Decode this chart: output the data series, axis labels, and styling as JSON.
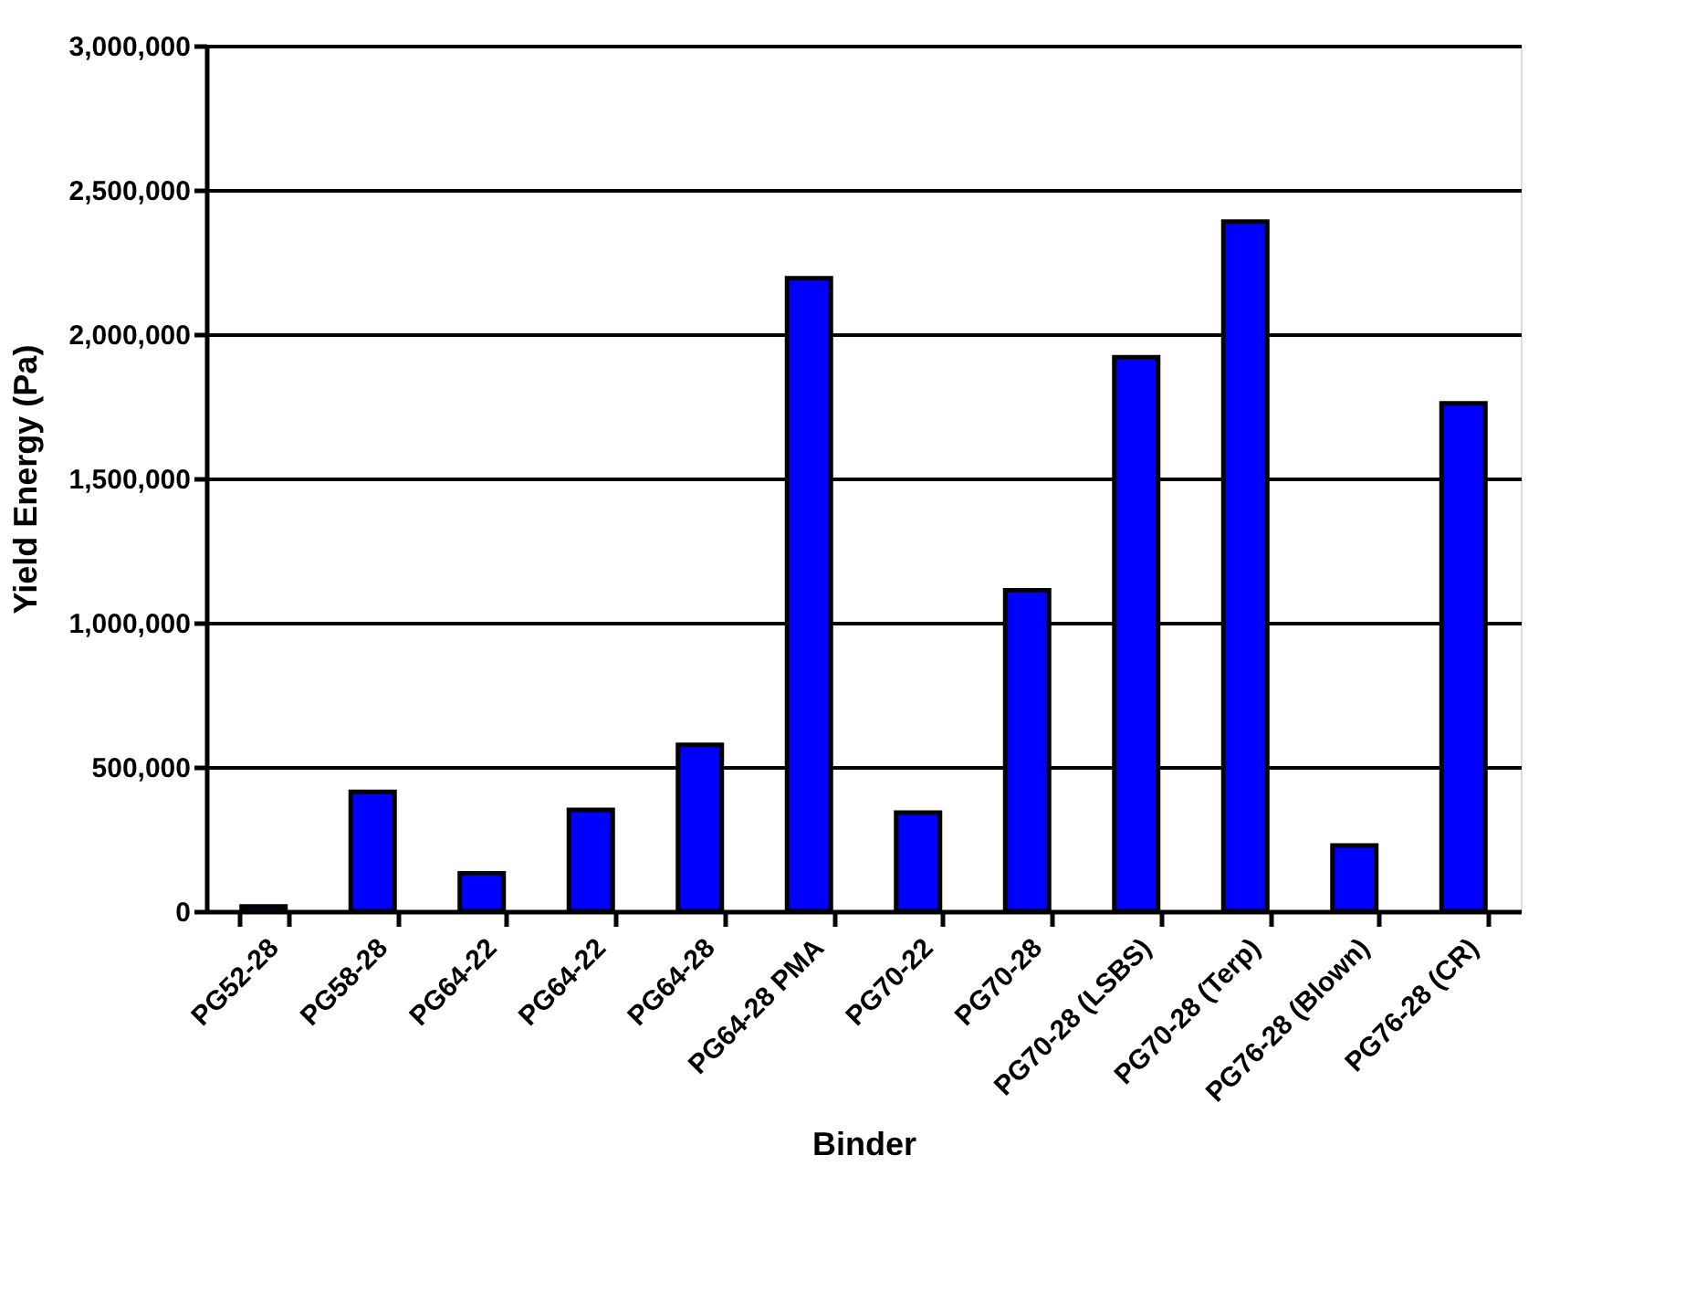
{
  "chart_data": {
    "type": "bar",
    "xlabel": "Binder",
    "ylabel": "Yield Energy (Pa)",
    "categories": [
      "PG52-28",
      "PG58-28",
      "PG64-22",
      "PG64-22",
      "PG64-28",
      "PG64-28 PMA",
      "PG70-22",
      "PG70-28",
      "PG70-28 (LSBS)",
      "PG70-28 (Terp)",
      "PG76-28 (Blown)",
      "PG76-28 (CR)"
    ],
    "values": [
      17000,
      414000,
      131000,
      351000,
      577000,
      2194000,
      342000,
      1112000,
      1920000,
      2390000,
      228000,
      1760000
    ],
    "color": "#0000ff",
    "ylim": [
      0,
      3000000
    ],
    "yticks": [
      {
        "value": 0,
        "label": "0"
      },
      {
        "value": 500000,
        "label": "500,000"
      },
      {
        "value": 1000000,
        "label": "1,000,000"
      },
      {
        "value": 1500000,
        "label": "1,500,000"
      },
      {
        "value": 2000000,
        "label": "2,000,000"
      },
      {
        "value": 2500000,
        "label": "2,500,000"
      },
      {
        "value": 3000000,
        "label": "3,000,000"
      }
    ],
    "grid": "y"
  }
}
